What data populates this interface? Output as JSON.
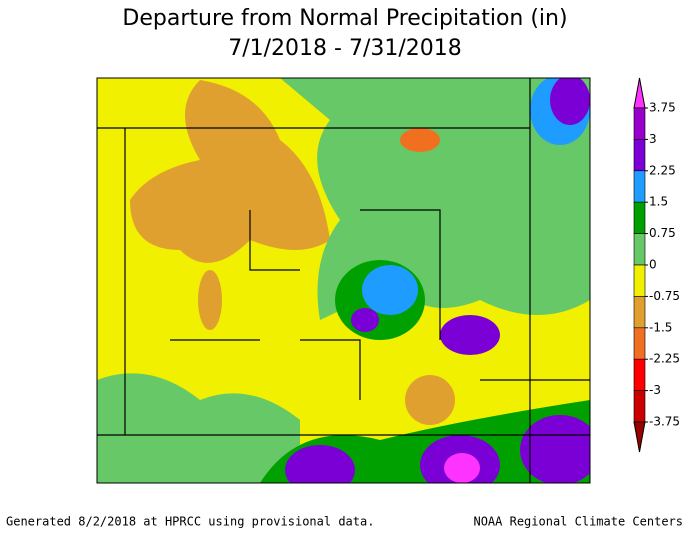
{
  "header": {
    "title": "Departure from Normal Precipitation (in)",
    "subtitle": "7/1/2018 - 7/31/2018"
  },
  "legend": {
    "labels": [
      "3.75",
      "3",
      "2.25",
      "1.5",
      "0.75",
      "0",
      "-0.75",
      "-1.5",
      "-2.25",
      "-3",
      "-3.75"
    ],
    "colors": [
      "#ff33ff",
      "#9900cc",
      "#7a00d6",
      "#1e9cff",
      "#00a000",
      "#66c866",
      "#f0f000",
      "#e0a030",
      "#f07020",
      "#ff0000",
      "#cc0000",
      "#990000"
    ]
  },
  "footer": {
    "left": "Generated 8/2/2018 at HPRCC using provisional data.",
    "right": "NOAA Regional Climate Centers"
  }
}
